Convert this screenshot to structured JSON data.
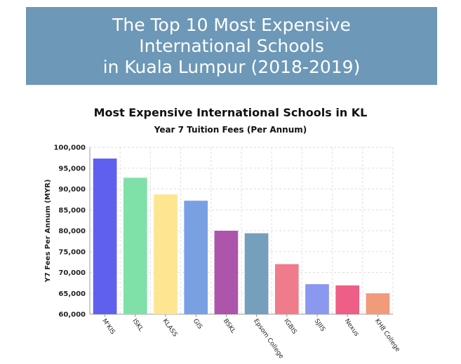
{
  "banner": {
    "lines": [
      "The Top 10 Most Expensive",
      "International Schools",
      "in Kuala Lumpur (2018-2019)"
    ]
  },
  "colors": {
    "banner_bg": "#6d98b7",
    "grid": "#dddddd"
  },
  "chart_data": {
    "type": "bar",
    "title": "Most Expensive International Schools in KL",
    "subtitle": "Year 7 Tuition Fees (Per Annum)",
    "ylabel": "Y7 Fees Per Annum (MYR)",
    "xlabel": "",
    "ylim": [
      60000,
      100000
    ],
    "yticks": [
      60000,
      65000,
      70000,
      75000,
      80000,
      85000,
      90000,
      95000,
      100000
    ],
    "ytick_labels": [
      "60,000",
      "65,000",
      "70,000",
      "75,000",
      "80,000",
      "85,000",
      "90,000",
      "95,000",
      "100,000"
    ],
    "grid": true,
    "categories": [
      "M'KIS",
      "ISKL",
      "KLASS",
      "GIS",
      "BSKL",
      "Epsom College",
      "IGBIS",
      "SJIIS",
      "Nexus",
      "KH8 College"
    ],
    "values": [
      97300,
      92700,
      88700,
      87200,
      80000,
      79400,
      72000,
      67200,
      66900,
      65000
    ],
    "bar_colors": [
      "#6060ee",
      "#7fe1a8",
      "#fde592",
      "#7aa0e4",
      "#ad55aa",
      "#759fbc",
      "#f07b8a",
      "#8b98f0",
      "#ef5e86",
      "#f29b7b"
    ]
  }
}
